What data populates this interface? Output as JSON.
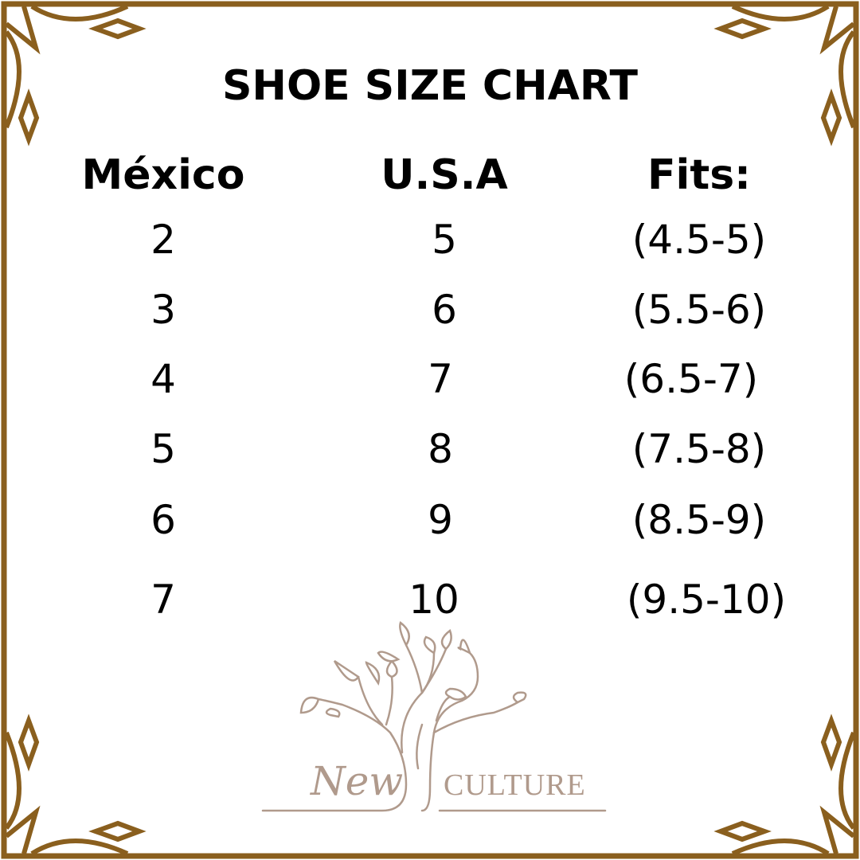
{
  "title": "SHOE SIZE CHART",
  "headers": [
    "México",
    "U.S.A",
    "Fits:"
  ],
  "rows": [
    [
      "2",
      "5",
      "(4.5-5)"
    ],
    [
      "3",
      "6",
      "(5.5-6)"
    ],
    [
      "4",
      "7",
      "(6.5-7)"
    ],
    [
      "5",
      "8",
      "(7.5-8)"
    ],
    [
      "6",
      "9",
      "(8.5-9)"
    ],
    [
      "7",
      "10",
      "(9.5-10)"
    ]
  ],
  "logo": {
    "word1": "New",
    "word2": "CULTURE"
  },
  "colors": {
    "frame": "#8a5f1e",
    "logo": "#b09a8c",
    "text": "#000000"
  }
}
